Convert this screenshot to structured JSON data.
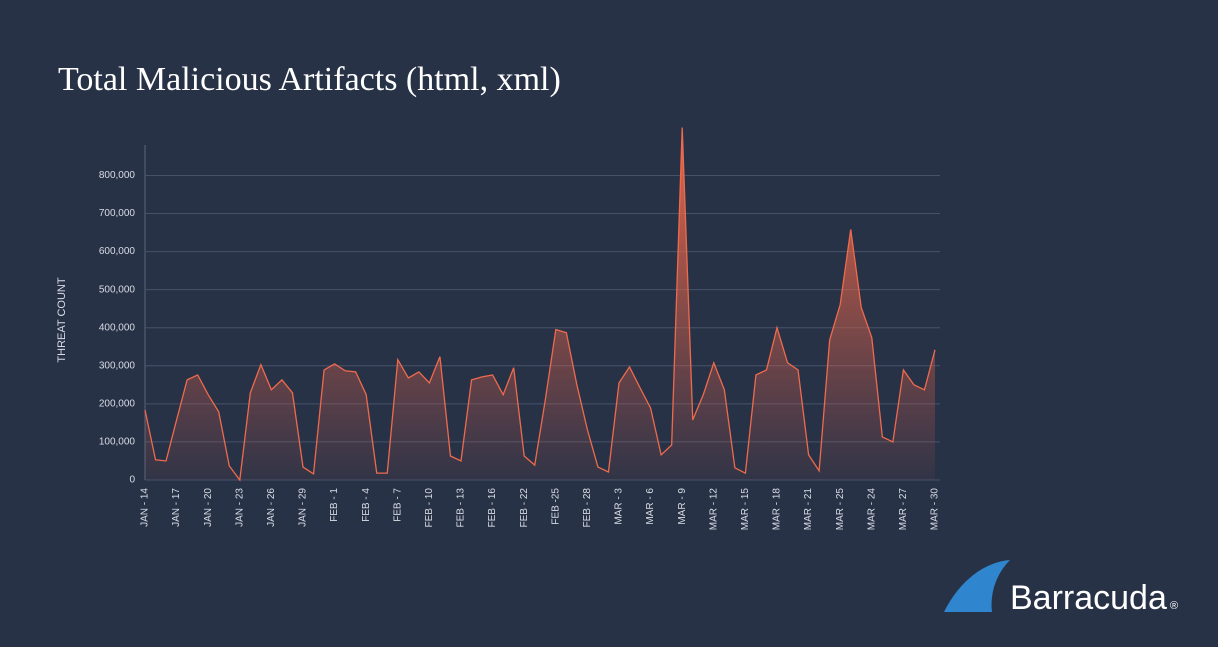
{
  "chart_data": {
    "type": "area",
    "title": "Total Malicious Artifacts (html, xml)",
    "y_label": "THREAT COUNT",
    "brand": "Barracuda",
    "brand_mark": "®",
    "categories": [
      "JAN - 14",
      null,
      null,
      "JAN - 17",
      null,
      null,
      "JAN - 20",
      null,
      null,
      "JAN - 23",
      null,
      null,
      "JAN - 26",
      null,
      null,
      "JAN - 29",
      null,
      null,
      "FEB - 1",
      null,
      null,
      "FEB - 4",
      null,
      null,
      "FEB - 7",
      null,
      null,
      "FEB - 10",
      null,
      null,
      "FEB - 13",
      null,
      null,
      "FEB - 16",
      null,
      null,
      "FEB - 22",
      null,
      null,
      "FEB -25",
      null,
      null,
      "FEB - 28",
      null,
      null,
      "MAR - 3",
      null,
      null,
      "MAR - 6",
      null,
      null,
      "MAR - 9",
      null,
      null,
      "MAR - 12",
      null,
      null,
      "MAR - 15",
      null,
      null,
      "MAR - 18",
      null,
      null,
      "MAR - 21",
      null,
      null,
      "MAR - 25",
      null,
      null,
      "MAR - 24",
      null,
      null,
      "MAR - 27",
      null,
      null,
      "MAR - 30"
    ],
    "series": [
      {
        "name": "Threat count",
        "color": "#ef6a4c",
        "values": [
          184000,
          53000,
          50000,
          158000,
          263000,
          276000,
          224000,
          179000,
          37000,
          0,
          229000,
          303000,
          237000,
          263000,
          229000,
          34000,
          16000,
          289000,
          305000,
          287000,
          284000,
          224000,
          18000,
          18000,
          316000,
          268000,
          284000,
          255000,
          324000,
          63000,
          50000,
          263000,
          271000,
          276000,
          224000,
          295000,
          63000,
          39000,
          210000,
          395000,
          387000,
          250000,
          132000,
          34000,
          21000,
          255000,
          297000,
          242000,
          189000,
          66000,
          92000,
          926000,
          158000,
          224000,
          308000,
          237000,
          32000,
          18000,
          276000,
          289000,
          400000,
          308000,
          289000,
          66000,
          24000,
          368000,
          461000,
          658000,
          453000,
          374000,
          113000,
          100000,
          289000,
          250000,
          237000,
          342000
        ]
      }
    ],
    "ylim": [
      0,
      880000
    ],
    "yticks": [
      0,
      {
        "value": 100000,
        "label": "100,000"
      },
      {
        "value": 200000,
        "label": "200,000"
      },
      {
        "value": 300000,
        "label": "300,000"
      },
      {
        "value": 400000,
        "label": "400,000"
      },
      {
        "value": 500000,
        "label": "500,000"
      },
      {
        "value": 600000,
        "label": "600,000"
      },
      {
        "value": 700000,
        "label": "700,000"
      },
      {
        "value": 800000,
        "label": "800,000"
      }
    ],
    "grid": true
  }
}
